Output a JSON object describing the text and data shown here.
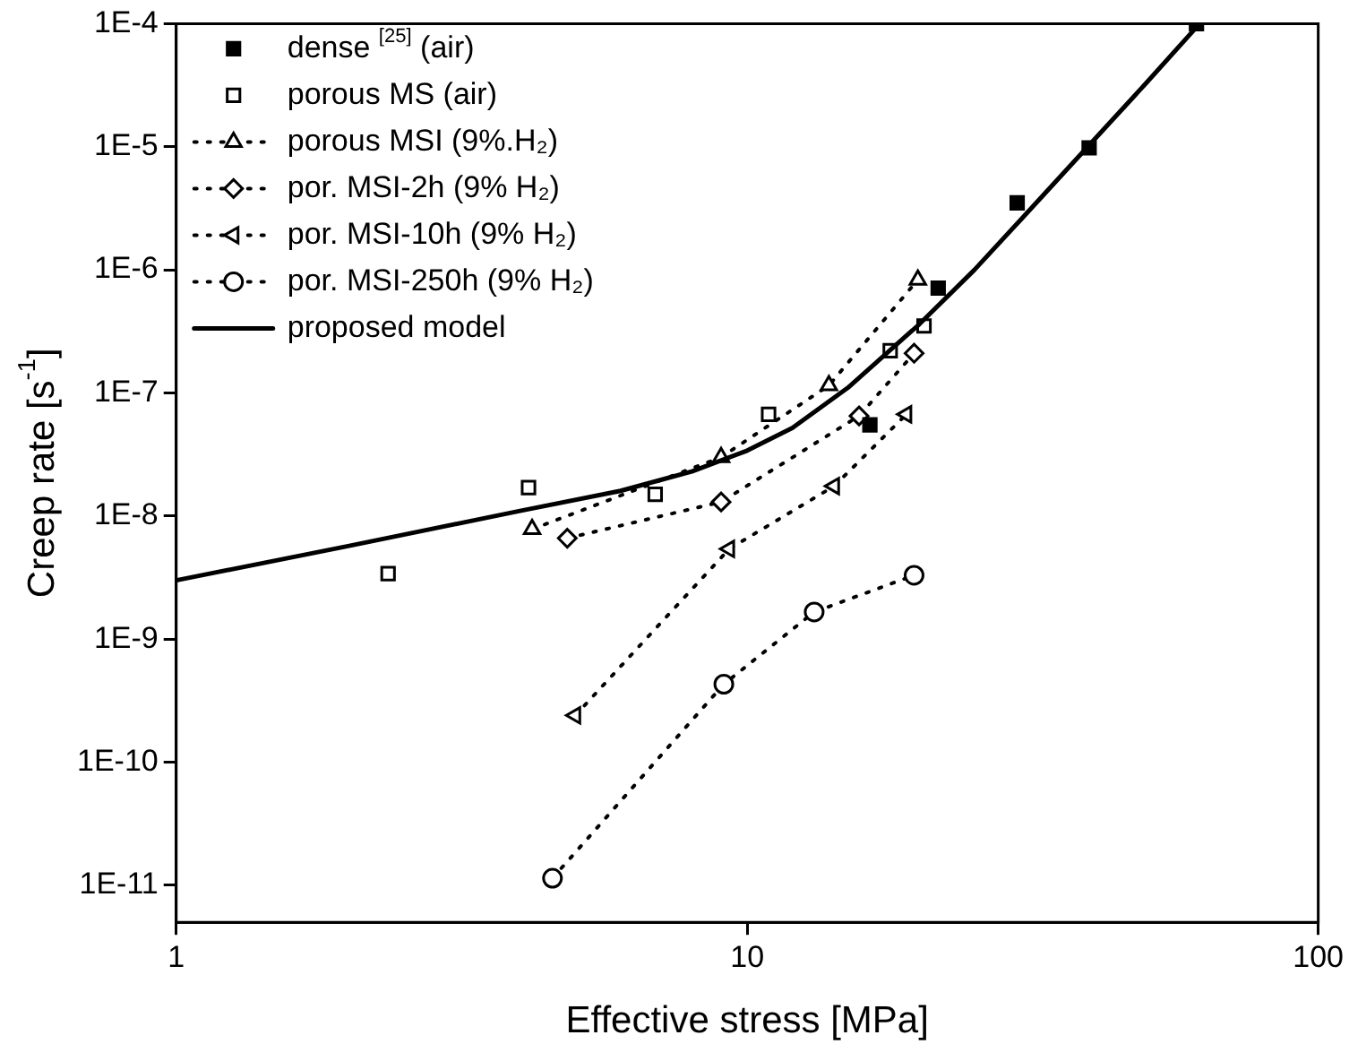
{
  "chart_data": {
    "type": "scatter",
    "xlabel": "Effective stress [MPa]",
    "ylabel": "Creep rate [s$^{-1}$]",
    "log": "xy",
    "grid": false,
    "legend": "top left",
    "xlim": [
      1,
      100
    ],
    "xticks": [
      1,
      10,
      100
    ],
    "ylim": [
      5e-12,
      0.0001
    ],
    "yticks": [
      {
        "value": 1e-11,
        "label": "1E-11"
      },
      {
        "value": 1e-10,
        "label": "1E-10"
      },
      {
        "value": 1e-09,
        "label": "1E-9"
      },
      {
        "value": 1e-08,
        "label": "1E-8"
      },
      {
        "value": 1e-07,
        "label": "1E-7"
      },
      {
        "value": 1e-06,
        "label": "1E-6"
      },
      {
        "value": 1e-05,
        "label": "1E-5"
      },
      {
        "value": 0.0001,
        "label": "1E-4"
      }
    ],
    "series": [
      {
        "name": "dense $^{[25]}$ (air)",
        "type": "scatter",
        "marker": "square",
        "color": "#000000",
        "x": [
          16.4,
          21.6,
          29.7,
          39.7,
          61.2
        ],
        "values": [
          5.5e-08,
          7.1e-07,
          3.5e-06,
          9.8e-06,
          0.0001
        ]
      },
      {
        "name": "porous MS (air)",
        "type": "scatter",
        "marker": "square",
        "color": "#000000",
        "x": [
          2.35,
          4.14,
          6.9,
          10.9,
          17.8,
          20.4
        ],
        "values": [
          3.4e-09,
          1.7e-08,
          1.5e-08,
          6.7e-08,
          2.2e-07,
          3.5e-07
        ]
      },
      {
        "name": "porous MSI (9%.H₂)",
        "type": "line",
        "marker": "triangle",
        "line_style": "dotted",
        "color": "#000000",
        "x": [
          4.2,
          9.0,
          13.9,
          19.9
        ],
        "values": [
          7.8e-09,
          3e-08,
          1.15e-07,
          8.3e-07
        ]
      },
      {
        "name": "por. MSI-2h (9% H₂)",
        "type": "line",
        "marker": "diamond",
        "line_style": "dotted",
        "color": "#000000",
        "x": [
          4.84,
          9.0,
          15.7,
          19.6
        ],
        "values": [
          6.6e-09,
          1.3e-08,
          6.5e-08,
          2.1e-07
        ]
      },
      {
        "name": "por. MSI-10h (9% H₂)",
        "type": "line",
        "marker": "triangle",
        "line_style": "dotted",
        "color": "#000000",
        "x": [
          5.0,
          9.3,
          14.2,
          19.0
        ],
        "values": [
          2.4e-10,
          5.4e-09,
          1.75e-08,
          6.7e-08
        ]
      },
      {
        "name": "por. MSI-250h (9% H₂)",
        "type": "line",
        "marker": "circle",
        "line_style": "dotted",
        "color": "#000000",
        "x": [
          4.56,
          9.1,
          13.1,
          19.6
        ],
        "values": [
          1.14e-11,
          4.3e-10,
          1.66e-09,
          3.3e-09
        ]
      },
      {
        "name": "proposed model",
        "type": "line",
        "marker": "none",
        "line_style": "solid",
        "color": "#000000",
        "x": [
          1,
          2,
          4,
          6,
          8,
          10,
          12,
          15,
          20,
          25,
          30,
          40,
          50,
          62
        ],
        "values": [
          3e-09,
          5.7e-09,
          1.1e-08,
          1.6e-08,
          2.3e-08,
          3.4e-08,
          5.2e-08,
          1.1e-07,
          3.6e-07,
          1e-06,
          2.5e-06,
          1.07e-05,
          3.3e-05,
          0.0001
        ]
      }
    ]
  }
}
